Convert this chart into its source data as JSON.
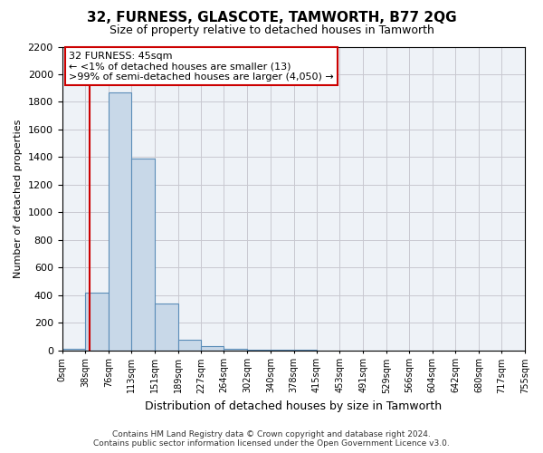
{
  "title": "32, FURNESS, GLASCOTE, TAMWORTH, B77 2QG",
  "subtitle": "Size of property relative to detached houses in Tamworth",
  "xlabel": "Distribution of detached houses by size in Tamworth",
  "ylabel": "Number of detached properties",
  "footer_line1": "Contains HM Land Registry data © Crown copyright and database right 2024.",
  "footer_line2": "Contains public sector information licensed under the Open Government Licence v3.0.",
  "annotation_line1": "32 FURNESS: 45sqm",
  "annotation_line2": "← <1% of detached houses are smaller (13)",
  "annotation_line3": ">99% of semi-detached houses are larger (4,050) →",
  "property_size": 45,
  "bin_edges": [
    0,
    38,
    76,
    113,
    151,
    189,
    227,
    264,
    302,
    340,
    378,
    415,
    453,
    491,
    529,
    566,
    604,
    642,
    680,
    717,
    755
  ],
  "bar_heights": [
    13,
    420,
    1870,
    1390,
    340,
    75,
    30,
    10,
    5,
    2,
    1,
    0,
    0,
    0,
    0,
    0,
    0,
    0,
    0,
    0
  ],
  "bar_color": "#c8d8e8",
  "bar_edge_color": "#5b8db8",
  "red_line_color": "#cc0000",
  "annotation_box_color": "#ffffff",
  "annotation_box_edge_color": "#cc0000",
  "grid_color": "#c8c8d0",
  "background_color": "#eef2f7",
  "ylim": [
    0,
    2200
  ],
  "yticks": [
    0,
    200,
    400,
    600,
    800,
    1000,
    1200,
    1400,
    1600,
    1800,
    2000,
    2200
  ],
  "tick_labels": [
    "0sqm",
    "38sqm",
    "76sqm",
    "113sqm",
    "151sqm",
    "189sqm",
    "227sqm",
    "264sqm",
    "302sqm",
    "340sqm",
    "378sqm",
    "415sqm",
    "453sqm",
    "491sqm",
    "529sqm",
    "566sqm",
    "604sqm",
    "642sqm",
    "680sqm",
    "717sqm",
    "755sqm"
  ]
}
